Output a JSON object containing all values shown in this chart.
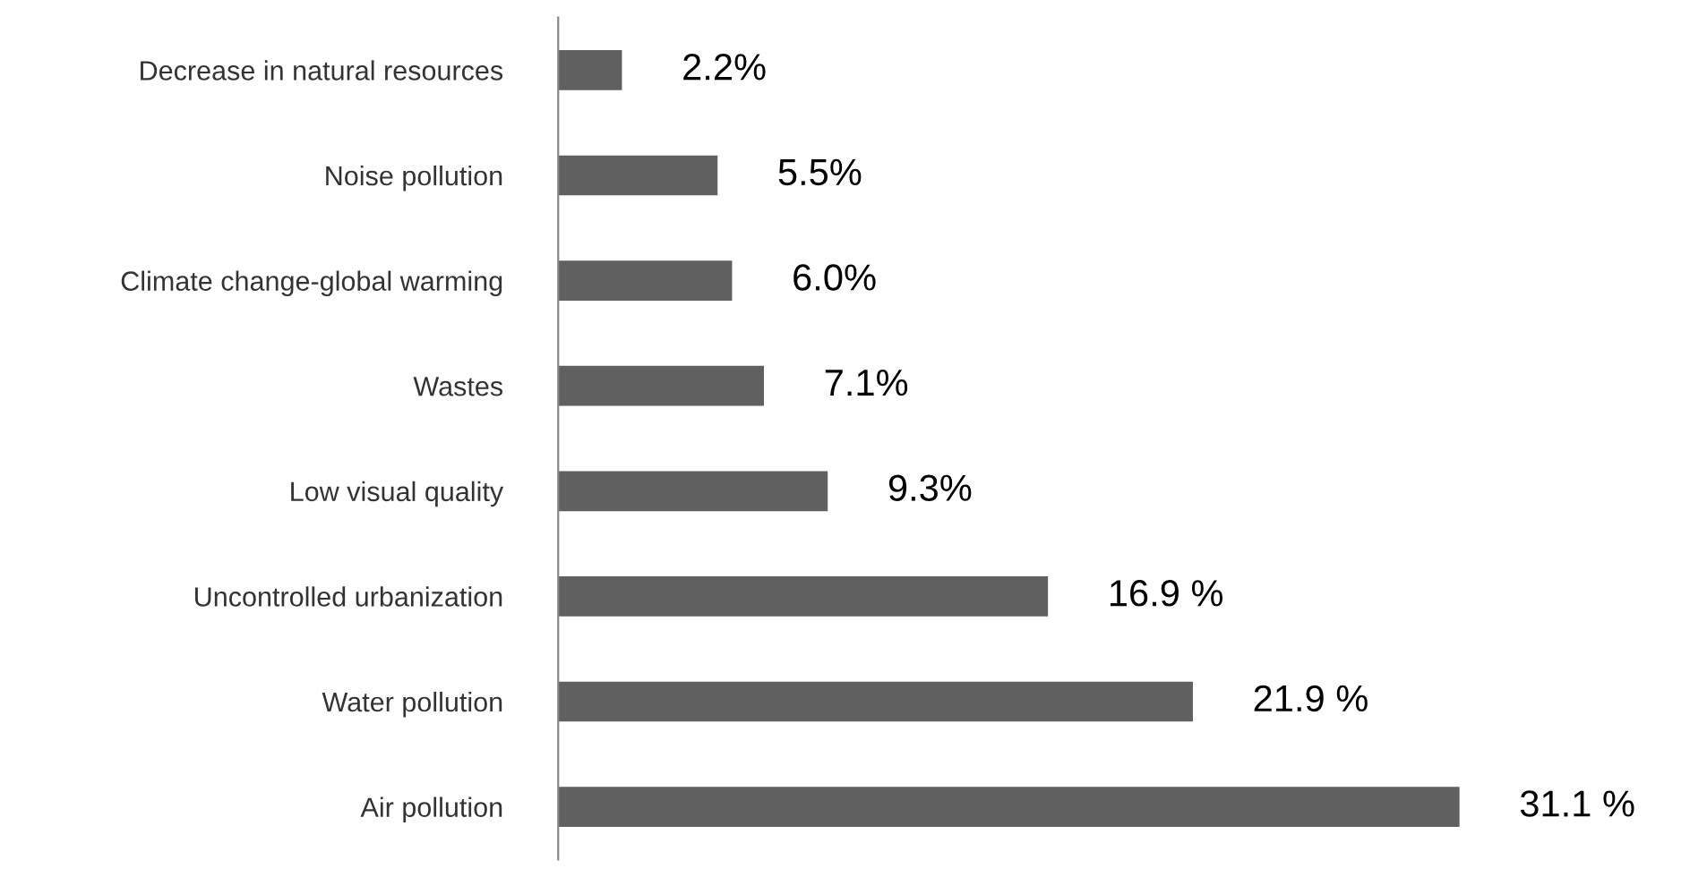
{
  "chart_data": {
    "type": "bar",
    "orientation": "horizontal",
    "categories": [
      "Decrease in natural resources",
      "Noise pollution",
      "Climate change-global warming",
      "Wastes",
      "Low visual quality",
      "Uncontrolled urbanization",
      "Water pollution",
      "Air pollution"
    ],
    "values": [
      2.2,
      5.5,
      6.0,
      7.1,
      9.3,
      16.9,
      21.9,
      31.1
    ],
    "value_labels": [
      "2.2%",
      "5.5%",
      "6.0%",
      "7.1%",
      "9.3%",
      "16.9 %",
      "21.9 %",
      "31.1 %"
    ],
    "color": "#606060",
    "tick_labels": "y",
    "grid": false,
    "legend": false
  }
}
